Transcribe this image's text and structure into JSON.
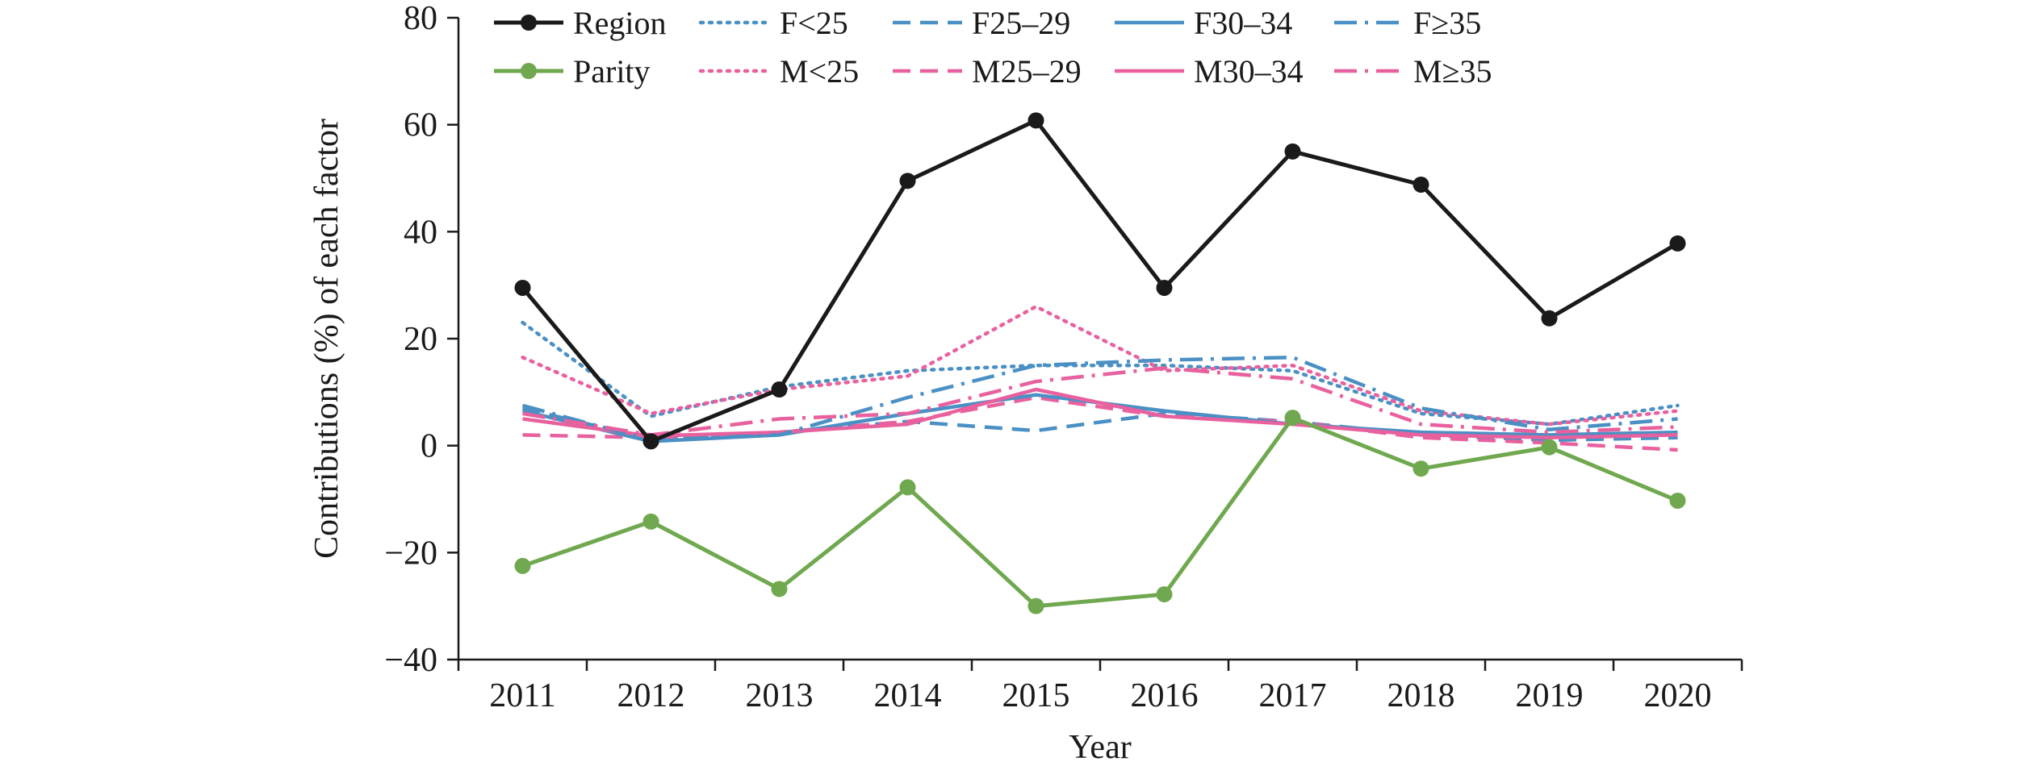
{
  "chart_data": {
    "type": "line",
    "title": "",
    "xlabel": "Year",
    "ylabel": "Contributions (%) of each factor",
    "categories": [
      "2011",
      "2012",
      "2013",
      "2014",
      "2015",
      "2016",
      "2017",
      "2018",
      "2019",
      "2020"
    ],
    "ylim": [
      -40,
      80
    ],
    "yticks": [
      -40,
      -20,
      0,
      20,
      40,
      60,
      80
    ],
    "ytick_labels": [
      "−40",
      "−20",
      "0",
      "20",
      "40",
      "60",
      "80"
    ],
    "grid": false,
    "legend_position": "top",
    "series": [
      {
        "name": "Region",
        "color": "#1a1a1a",
        "style": "solid",
        "marker": true,
        "values": [
          29.5,
          0.8,
          10.5,
          49.5,
          60.8,
          29.5,
          55,
          48.8,
          23.8,
          37.8
        ]
      },
      {
        "name": "Parity",
        "color": "#70a84f",
        "style": "solid",
        "marker": true,
        "values": [
          -22.5,
          -14.2,
          -26.8,
          -7.8,
          -30,
          -27.8,
          5.2,
          -4.3,
          -0.3,
          -10.3
        ]
      },
      {
        "name": "F<25",
        "color": "#4a90c4",
        "style": "dotted",
        "marker": false,
        "values": [
          23,
          5.5,
          11,
          14,
          15,
          15,
          14,
          6,
          4,
          7.5
        ]
      },
      {
        "name": "M<25",
        "color": "#e8619e",
        "style": "dotted",
        "marker": false,
        "values": [
          16.5,
          6,
          10.5,
          13,
          26,
          14,
          15,
          6.5,
          4,
          6.5
        ]
      },
      {
        "name": "F25–29",
        "color": "#4a90c4",
        "style": "dashed",
        "marker": false,
        "values": [
          7,
          1.2,
          2.5,
          4.5,
          2.8,
          6,
          4.5,
          2,
          1,
          1.5
        ]
      },
      {
        "name": "M25–29",
        "color": "#e8619e",
        "style": "dashed",
        "marker": false,
        "values": [
          2,
          1.5,
          2.5,
          4.5,
          9,
          5.5,
          4.5,
          1.5,
          0.5,
          -0.8
        ]
      },
      {
        "name": "F30–34",
        "color": "#4a90c4",
        "style": "solid",
        "marker": false,
        "values": [
          6.5,
          0.8,
          2,
          6,
          9.5,
          6.5,
          4,
          2.5,
          2,
          2.5
        ]
      },
      {
        "name": "M30–34",
        "color": "#e8619e",
        "style": "solid",
        "marker": false,
        "values": [
          5,
          1.8,
          2.5,
          4,
          10.5,
          5.5,
          4,
          2,
          1.5,
          2
        ]
      },
      {
        "name": "F≥35",
        "color": "#4a90c4",
        "style": "dashdot",
        "marker": false,
        "values": [
          7.5,
          1,
          2,
          9,
          15,
          16,
          16.5,
          7,
          3,
          5
        ]
      },
      {
        "name": "M≥35",
        "color": "#e8619e",
        "style": "dashdot",
        "marker": false,
        "values": [
          6,
          2,
          5,
          6,
          12,
          14.5,
          12.5,
          4,
          2.5,
          3.5
        ]
      }
    ]
  }
}
